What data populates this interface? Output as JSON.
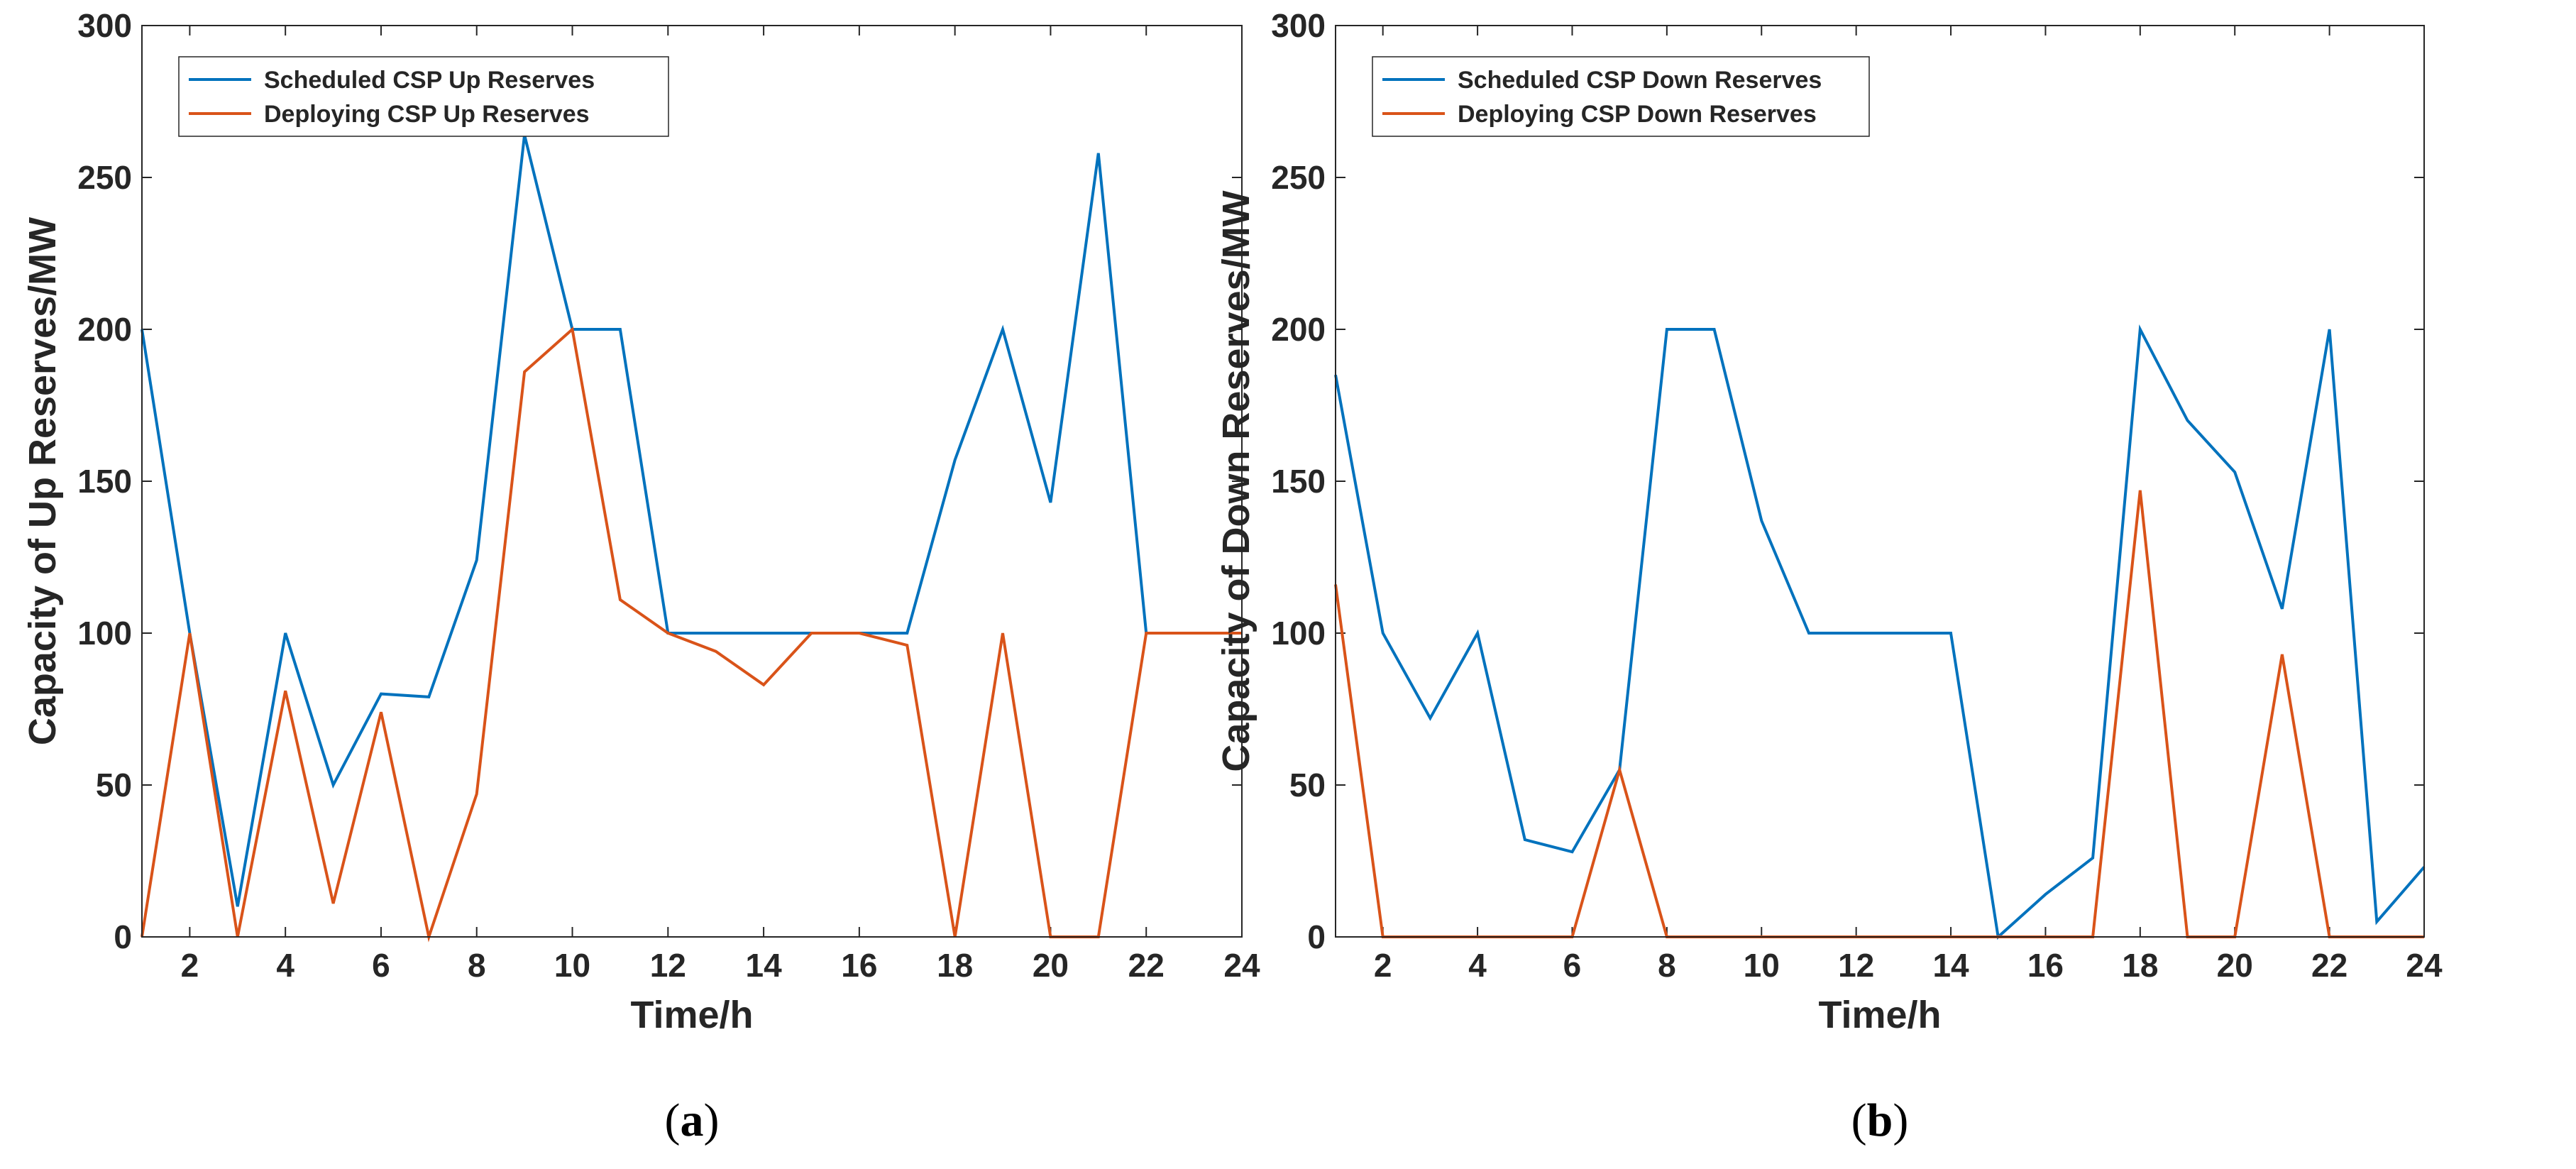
{
  "chart_data": [
    {
      "type": "line",
      "panel_label": "a",
      "xlabel": "Time/h",
      "ylabel": "Capacity of Up Reserves/MW",
      "xlim": [
        1,
        24
      ],
      "ylim": [
        0,
        300
      ],
      "xticks": [
        2,
        4,
        6,
        8,
        10,
        12,
        14,
        16,
        18,
        20,
        22,
        24
      ],
      "yticks": [
        0,
        50,
        100,
        150,
        200,
        250,
        300
      ],
      "grid": false,
      "legend_position": "top-left",
      "x": [
        1,
        2,
        3,
        4,
        5,
        6,
        7,
        8,
        9,
        10,
        11,
        12,
        13,
        14,
        15,
        16,
        17,
        18,
        19,
        20,
        21,
        22,
        23,
        24
      ],
      "series": [
        {
          "name": "Scheduled CSP Up Reserves",
          "color": "#0072BD",
          "values": [
            200,
            100,
            10,
            100,
            50,
            80,
            79,
            124,
            264,
            200,
            200,
            100,
            100,
            100,
            100,
            100,
            100,
            157,
            200,
            143,
            258,
            100,
            100,
            100
          ]
        },
        {
          "name": "Deploying CSP Up Reserves",
          "color": "#D95319",
          "values": [
            0,
            100,
            0,
            81,
            11,
            74,
            0,
            47,
            186,
            200,
            111,
            100,
            94,
            83,
            100,
            100,
            96,
            0,
            100,
            0,
            0,
            100,
            100,
            100
          ]
        }
      ]
    },
    {
      "type": "line",
      "panel_label": "b",
      "xlabel": "Time/h",
      "ylabel": "Capacity of Down Reserves/MW",
      "xlim": [
        1,
        24
      ],
      "ylim": [
        0,
        300
      ],
      "xticks": [
        2,
        4,
        6,
        8,
        10,
        12,
        14,
        16,
        18,
        20,
        22,
        24
      ],
      "yticks": [
        0,
        50,
        100,
        150,
        200,
        250,
        300
      ],
      "grid": false,
      "legend_position": "top-left",
      "x": [
        1,
        2,
        3,
        4,
        5,
        6,
        7,
        8,
        9,
        10,
        11,
        12,
        13,
        14,
        15,
        16,
        17,
        18,
        19,
        20,
        21,
        22,
        23,
        24
      ],
      "series": [
        {
          "name": "Scheduled CSP Down Reserves",
          "color": "#0072BD",
          "values": [
            185,
            100,
            72,
            100,
            32,
            28,
            55,
            200,
            200,
            137,
            100,
            100,
            100,
            100,
            0,
            14,
            26,
            200,
            170,
            153,
            108,
            200,
            5,
            23
          ]
        },
        {
          "name": "Deploying CSP Down Reserves",
          "color": "#D95319",
          "values": [
            116,
            0,
            0,
            0,
            0,
            0,
            55,
            0,
            0,
            0,
            0,
            0,
            0,
            0,
            0,
            0,
            0,
            147,
            0,
            0,
            93,
            0,
            0,
            0
          ]
        }
      ]
    }
  ]
}
